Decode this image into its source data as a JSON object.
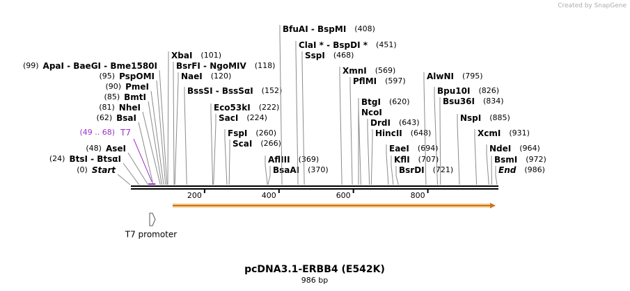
{
  "header": {
    "credit": "Created by SnapGene"
  },
  "map": {
    "title": "pcDNA3.1-ERBB4 (E542K)",
    "length": {
      "value": 986,
      "label": "986 bp"
    },
    "ticks": [
      200,
      400,
      600,
      800
    ],
    "sites": [
      {
        "name": "ApaI  -  BaeGI  -  Bme1580I",
        "pos": {
          "value": 99,
          "label": "(99)"
        }
      },
      {
        "name": "PspOMI",
        "pos": {
          "value": 95,
          "label": "(95)"
        }
      },
      {
        "name": "PmeI",
        "pos": {
          "value": 90,
          "label": "(90)"
        }
      },
      {
        "name": "BmtI",
        "pos": {
          "value": 85,
          "label": "(85)"
        }
      },
      {
        "name": "NheI",
        "pos": {
          "value": 81,
          "label": "(81)"
        }
      },
      {
        "name": "BsaI",
        "pos": {
          "value": 62,
          "label": "(62)"
        }
      },
      {
        "name": "AseI",
        "pos": {
          "value": 48,
          "label": "(48)"
        }
      },
      {
        "name": "BtsI  -  BtsαI",
        "pos": {
          "value": 24,
          "label": "(24)"
        }
      },
      {
        "name": "Start",
        "pos": {
          "value": 0,
          "label": "(0)"
        },
        "italic": true
      },
      {
        "name": "XbaI",
        "pos": {
          "value": 101,
          "label": "(101)"
        }
      },
      {
        "name": "BsrFI  -  NgoMIV",
        "pos": {
          "value": 118,
          "label": "(118)"
        }
      },
      {
        "name": "NaeI",
        "pos": {
          "value": 120,
          "label": "(120)"
        }
      },
      {
        "name": "BssSI  -  BssSαI",
        "pos": {
          "value": 152,
          "label": "(152)"
        }
      },
      {
        "name": "Eco53kI",
        "pos": {
          "value": 222,
          "label": "(222)"
        }
      },
      {
        "name": "SacI",
        "pos": {
          "value": 224,
          "label": "(224)"
        }
      },
      {
        "name": "FspI",
        "pos": {
          "value": 260,
          "label": "(260)"
        }
      },
      {
        "name": "ScaI",
        "pos": {
          "value": 266,
          "label": "(266)"
        }
      },
      {
        "name": "AflIII",
        "pos": {
          "value": 369,
          "label": "(369)"
        }
      },
      {
        "name": "BsaAI",
        "pos": {
          "value": 370,
          "label": "(370)"
        }
      },
      {
        "name": "BfuAI  -  BspMI",
        "pos": {
          "value": 408,
          "label": "(408)"
        }
      },
      {
        "name": "ClaI *  -  BspDI *",
        "pos": {
          "value": 451,
          "label": "(451)"
        }
      },
      {
        "name": "SspI",
        "pos": {
          "value": 468,
          "label": "(468)"
        }
      },
      {
        "name": "XmnI",
        "pos": {
          "value": 569,
          "label": "(569)"
        }
      },
      {
        "name": "PflMI",
        "pos": {
          "value": 597,
          "label": "(597)"
        }
      },
      {
        "name": "BtgI",
        "pos": {
          "value": 620,
          "label": "(620)"
        }
      },
      {
        "name": "NcoI"
      },
      {
        "name": "DrdI",
        "pos": {
          "value": 643,
          "label": "(643)"
        }
      },
      {
        "name": "HincII",
        "pos": {
          "value": 648,
          "label": "(648)"
        }
      },
      {
        "name": "EaeI",
        "pos": {
          "value": 694,
          "label": "(694)"
        }
      },
      {
        "name": "KflI",
        "pos": {
          "value": 707,
          "label": "(707)"
        }
      },
      {
        "name": "BsrDI",
        "pos": {
          "value": 721,
          "label": "(721)"
        }
      },
      {
        "name": "AlwNI",
        "pos": {
          "value": 795,
          "label": "(795)"
        }
      },
      {
        "name": "Bpu10I",
        "pos": {
          "value": 826,
          "label": "(826)"
        }
      },
      {
        "name": "Bsu36I",
        "pos": {
          "value": 834,
          "label": "(834)"
        }
      },
      {
        "name": "NspI",
        "pos": {
          "value": 885,
          "label": "(885)"
        }
      },
      {
        "name": "XcmI",
        "pos": {
          "value": 931,
          "label": "(931)"
        }
      },
      {
        "name": "NdeI",
        "pos": {
          "value": 964,
          "label": "(964)"
        }
      },
      {
        "name": "BsmI",
        "pos": {
          "value": 972,
          "label": "(972)"
        }
      },
      {
        "name": "End",
        "pos": {
          "value": 986,
          "label": "(986)"
        },
        "italic": true
      }
    ],
    "primer": {
      "name": "T7",
      "start": 49,
      "end": 68,
      "label": "(49 .. 68)"
    },
    "feature": {
      "name": "T7 promoter"
    }
  }
}
